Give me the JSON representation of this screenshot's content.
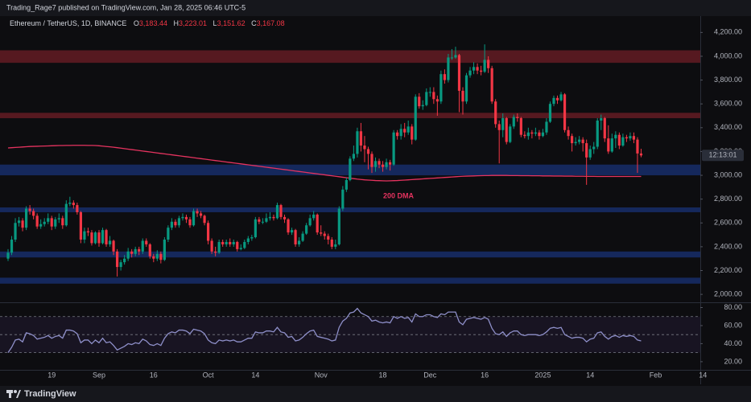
{
  "chart_data": {
    "type": "candlestick",
    "publisher": "Trading_Rage7 published on TradingView.com, Jan 28, 2025 06:46 UTC-5",
    "symbol": "Ethereum / TetherUS, 1D, BINANCE",
    "ohlc_header": {
      "labels": [
        "O",
        "H",
        "L",
        "C"
      ],
      "values": [
        3183.44,
        3223.01,
        3151.62,
        3167.08
      ],
      "value_labels": [
        "3,183.44",
        "3,223.01",
        "3,151.62",
        "3,167.08"
      ]
    },
    "countdown": "12:13:01",
    "brand": "TradingView",
    "up_color": "#089981",
    "down_color": "#f23645",
    "categories": [
      null,
      null,
      null,
      null,
      null,
      null,
      null,
      null,
      null,
      null,
      null,
      null,
      "19",
      null,
      null,
      null,
      null,
      null,
      null,
      null,
      null,
      null,
      null,
      null,
      null,
      "Sep",
      null,
      null,
      null,
      null,
      null,
      null,
      null,
      null,
      null,
      null,
      null,
      null,
      null,
      null,
      "16",
      null,
      null,
      null,
      null,
      null,
      null,
      null,
      null,
      null,
      null,
      null,
      null,
      null,
      null,
      "Oct",
      null,
      null,
      null,
      null,
      null,
      null,
      null,
      null,
      null,
      null,
      null,
      null,
      "14",
      null,
      null,
      null,
      null,
      null,
      null,
      null,
      null,
      null,
      null,
      null,
      null,
      null,
      null,
      null,
      null,
      null,
      "Nov",
      null,
      null,
      null,
      null,
      null,
      null,
      null,
      null,
      null,
      null,
      null,
      null,
      null,
      null,
      null,
      null,
      "18",
      null,
      null,
      null,
      null,
      null,
      null,
      null,
      null,
      null,
      null,
      null,
      null,
      "Dec",
      null,
      null,
      null,
      null,
      null,
      null,
      null,
      null,
      null,
      null,
      null,
      null,
      null,
      null,
      "16",
      null,
      null,
      null,
      null,
      null,
      null,
      null,
      null,
      null,
      null,
      null,
      null,
      null,
      null,
      null,
      "2025",
      null,
      null,
      null,
      null,
      null,
      null,
      null,
      null,
      null,
      null,
      null,
      null,
      "14",
      null,
      null,
      null,
      null,
      null,
      null,
      null,
      null,
      null,
      null,
      null,
      null,
      null,
      null,
      null,
      null,
      null,
      "Feb",
      null,
      null,
      null,
      null,
      null,
      null,
      null,
      null,
      null,
      null,
      null,
      null,
      "14",
      null,
      null,
      null
    ],
    "open": [
      2300,
      2350,
      2460,
      2600,
      2620,
      2560,
      2720,
      2700,
      2660,
      2570,
      2590,
      2610,
      2640,
      2570,
      2630,
      2640,
      2580,
      2760,
      2770,
      2750,
      2690,
      2460,
      2530,
      2520,
      2430,
      2520,
      2430,
      2540,
      2420,
      2450,
      2360,
      2230,
      2270,
      2300,
      2360,
      2340,
      2380,
      2360,
      2450,
      2420,
      2320,
      2300,
      2340,
      2290,
      2460,
      2560,
      2610,
      2580,
      2640,
      2650,
      2630,
      2580,
      2700,
      2680,
      2660,
      2600,
      2450,
      2360,
      2350,
      2440,
      2420,
      2440,
      2420,
      2440,
      2380,
      2390,
      2440,
      2470,
      2480,
      2630,
      2610,
      2610,
      2640,
      2650,
      2640,
      2750,
      2650,
      2630,
      2520,
      2540,
      2420,
      2450,
      2510,
      2580,
      2640,
      2670,
      2520,
      2510,
      2490,
      2460,
      2400,
      2420,
      2720,
      2880,
      2960,
      3140,
      3180,
      3370,
      3250,
      3220,
      3180,
      3070,
      3120,
      3090,
      3070,
      3110,
      3090,
      3360,
      3330,
      3390,
      3360,
      3410,
      3300,
      3660,
      3580,
      3590,
      3700,
      3700,
      3640,
      3620,
      3850,
      3800,
      3990,
      3990,
      4010,
      3710,
      3620,
      3840,
      3880,
      3910,
      3880,
      3870,
      3970,
      3900,
      3620,
      3430,
      3380,
      3480,
      3280,
      3410,
      3490,
      3480,
      3340,
      3330,
      3360,
      3350,
      3360,
      3330,
      3360,
      3450,
      3600,
      3650,
      3630,
      3680,
      3380,
      3330,
      3270,
      3280,
      3300,
      3270,
      3150,
      3220,
      3240,
      3460,
      3480,
      3310,
      3200,
      3310,
      3340,
      3250,
      3320,
      3310,
      3330,
      3300,
      3183.44,
      null,
      null,
      null,
      null,
      null,
      null,
      null,
      null,
      null,
      null,
      null,
      null,
      null,
      null,
      null,
      null,
      null,
      null,
      null,
      null
    ],
    "high": [
      2380,
      2490,
      2640,
      2650,
      2640,
      2740,
      2750,
      2720,
      2680,
      2630,
      2640,
      2680,
      2660,
      2650,
      2680,
      2660,
      2790,
      2820,
      2790,
      2770,
      2700,
      2560,
      2560,
      2540,
      2530,
      2540,
      2560,
      2550,
      2490,
      2460,
      2380,
      2290,
      2330,
      2390,
      2380,
      2400,
      2400,
      2470,
      2470,
      2430,
      2340,
      2370,
      2360,
      2480,
      2580,
      2640,
      2630,
      2660,
      2680,
      2670,
      2650,
      2720,
      2720,
      2700,
      2670,
      2620,
      2470,
      2400,
      2460,
      2460,
      2460,
      2470,
      2460,
      2450,
      2420,
      2460,
      2490,
      2500,
      2650,
      2650,
      2640,
      2680,
      2690,
      2670,
      2770,
      2760,
      2670,
      2640,
      2560,
      2550,
      2480,
      2530,
      2600,
      2670,
      2700,
      2680,
      2580,
      2530,
      2510,
      2480,
      2460,
      2740,
      2910,
      2980,
      3160,
      3250,
      3400,
      3440,
      3330,
      3240,
      3200,
      3150,
      3140,
      3120,
      3140,
      3130,
      3380,
      3380,
      3430,
      3440,
      3460,
      3430,
      3680,
      3690,
      3630,
      3730,
      3740,
      3740,
      3670,
      3880,
      3890,
      4020,
      4060,
      4080,
      4020,
      3740,
      3860,
      3910,
      3950,
      3940,
      3920,
      4100,
      4000,
      3920,
      3640,
      3460,
      3520,
      3490,
      3430,
      3510,
      3520,
      3490,
      3370,
      3400,
      3380,
      3400,
      3380,
      3390,
      3480,
      3620,
      3670,
      3670,
      3700,
      3690,
      3410,
      3350,
      3320,
      3330,
      3320,
      3300,
      3250,
      3280,
      3480,
      3510,
      3490,
      3420,
      3350,
      3370,
      3360,
      3350,
      3340,
      3360,
      3360,
      3320,
      3223.01,
      null,
      null,
      null,
      null,
      null,
      null,
      null,
      null,
      null,
      null,
      null,
      null,
      null,
      null,
      null,
      null,
      null,
      null,
      null,
      null
    ],
    "low": [
      2280,
      2330,
      2440,
      2570,
      2530,
      2540,
      2670,
      2630,
      2550,
      2550,
      2570,
      2590,
      2540,
      2550,
      2600,
      2550,
      2570,
      2740,
      2720,
      2670,
      2430,
      2430,
      2490,
      2410,
      2420,
      2400,
      2420,
      2400,
      2400,
      2330,
      2150,
      2200,
      2250,
      2280,
      2310,
      2320,
      2330,
      2340,
      2400,
      2300,
      2270,
      2280,
      2260,
      2280,
      2440,
      2540,
      2560,
      2560,
      2620,
      2600,
      2560,
      2570,
      2650,
      2640,
      2580,
      2420,
      2340,
      2320,
      2340,
      2400,
      2400,
      2400,
      2400,
      2360,
      2370,
      2380,
      2420,
      2450,
      2470,
      2590,
      2590,
      2600,
      2620,
      2620,
      2630,
      2630,
      2600,
      2500,
      2500,
      2400,
      2400,
      2440,
      2500,
      2570,
      2620,
      2500,
      2490,
      2460,
      2420,
      2380,
      2380,
      2410,
      2700,
      2860,
      2950,
      3120,
      3150,
      3200,
      3110,
      3050,
      3020,
      3030,
      3060,
      3030,
      3050,
      3040,
      3080,
      3300,
      3300,
      3320,
      3340,
      3260,
      3290,
      3560,
      3550,
      3580,
      3660,
      3600,
      3500,
      3600,
      3770,
      3780,
      3970,
      3980,
      3530,
      3510,
      3600,
      3820,
      3850,
      3850,
      3840,
      3860,
      3860,
      3600,
      3400,
      3100,
      3320,
      3260,
      3270,
      3390,
      3450,
      3320,
      3310,
      3300,
      3310,
      3330,
      3300,
      3320,
      3340,
      3440,
      3580,
      3600,
      3620,
      3360,
      3300,
      3200,
      3250,
      3260,
      3200,
      2920,
      3130,
      3180,
      3220,
      3380,
      3280,
      3180,
      3190,
      3230,
      3220,
      3240,
      3280,
      3290,
      3270,
      3020,
      3151.62,
      null,
      null,
      null,
      null,
      null,
      null,
      null,
      null,
      null,
      null,
      null,
      null,
      null,
      null,
      null,
      null,
      null,
      null,
      null,
      null
    ],
    "close": [
      2350,
      2460,
      2600,
      2620,
      2560,
      2720,
      2700,
      2660,
      2570,
      2590,
      2610,
      2640,
      2570,
      2630,
      2640,
      2580,
      2760,
      2770,
      2750,
      2690,
      2460,
      2530,
      2520,
      2430,
      2520,
      2430,
      2540,
      2420,
      2450,
      2360,
      2230,
      2270,
      2300,
      2360,
      2340,
      2380,
      2360,
      2450,
      2420,
      2320,
      2300,
      2340,
      2290,
      2460,
      2560,
      2610,
      2580,
      2640,
      2650,
      2630,
      2580,
      2700,
      2680,
      2660,
      2600,
      2450,
      2360,
      2350,
      2440,
      2420,
      2440,
      2420,
      2440,
      2380,
      2390,
      2440,
      2470,
      2480,
      2630,
      2610,
      2610,
      2640,
      2650,
      2640,
      2750,
      2650,
      2630,
      2520,
      2540,
      2420,
      2450,
      2510,
      2580,
      2640,
      2670,
      2520,
      2510,
      2490,
      2460,
      2400,
      2420,
      2720,
      2880,
      2960,
      3140,
      3180,
      3370,
      3250,
      3220,
      3180,
      3070,
      3120,
      3090,
      3070,
      3110,
      3090,
      3360,
      3330,
      3390,
      3360,
      3410,
      3300,
      3660,
      3580,
      3590,
      3700,
      3700,
      3640,
      3620,
      3850,
      3800,
      3990,
      3990,
      4010,
      3710,
      3620,
      3840,
      3880,
      3910,
      3880,
      3870,
      3970,
      3900,
      3620,
      3430,
      3380,
      3480,
      3280,
      3410,
      3490,
      3480,
      3340,
      3330,
      3360,
      3350,
      3360,
      3330,
      3360,
      3450,
      3600,
      3650,
      3630,
      3680,
      3380,
      3330,
      3270,
      3280,
      3300,
      3270,
      3150,
      3220,
      3240,
      3460,
      3480,
      3310,
      3200,
      3310,
      3340,
      3250,
      3320,
      3310,
      3330,
      3300,
      3183.44,
      3167.08,
      null,
      null,
      null,
      null,
      null,
      null,
      null,
      null,
      null,
      null,
      null,
      null,
      null,
      null,
      null,
      null,
      null,
      null,
      null,
      null
    ],
    "dma": {
      "label": "200 DMA",
      "color": "#e5335f",
      "values": [
        3230,
        3232,
        3234,
        3236,
        3238,
        3240,
        3242,
        3243,
        3244,
        3245,
        3246,
        3247,
        3248,
        3249,
        3250,
        3250,
        3251,
        3251,
        3252,
        3252,
        3252,
        3252,
        3251,
        3251,
        3250,
        3248,
        3245,
        3242,
        3239,
        3236,
        3232,
        3228,
        3224,
        3220,
        3216,
        3212,
        3208,
        3204,
        3200,
        3196,
        3192,
        3188,
        3184,
        3180,
        3176,
        3172,
        3168,
        3164,
        3160,
        3156,
        3152,
        3148,
        3144,
        3140,
        3136,
        3132,
        3128,
        3124,
        3120,
        3116,
        3112,
        3108,
        3104,
        3100,
        3096,
        3092,
        3088,
        3084,
        3080,
        3076,
        3072,
        3068,
        3064,
        3060,
        3056,
        3052,
        3048,
        3044,
        3040,
        3036,
        3032,
        3028,
        3024,
        3020,
        3016,
        3012,
        3008,
        3004,
        3000,
        2996,
        2992,
        2988,
        2984,
        2980,
        2976,
        2972,
        2968,
        2965,
        2962,
        2960,
        2958,
        2956,
        2955,
        2954,
        2953,
        2954,
        2955,
        2956,
        2958,
        2960,
        2962,
        2964,
        2966,
        2968,
        2970,
        2972,
        2974,
        2976,
        2978,
        2980,
        2982,
        2984,
        2986,
        2988,
        2990,
        2992,
        2993,
        2994,
        2995,
        2996,
        2997,
        2998,
        2998,
        2999,
        2999,
        2999,
        2999,
        2999,
        2998,
        2998,
        2998,
        2997,
        2997,
        2997,
        2996,
        2996,
        2996,
        2995,
        2995,
        2995,
        2994,
        2994,
        2994,
        2993,
        2993,
        2993,
        2992,
        2992,
        2992,
        2991,
        2991,
        2991,
        2990,
        2990,
        2990,
        2990,
        2990,
        2990,
        2990,
        2990,
        2990,
        2990,
        2990,
        2990,
        2990,
        null,
        null,
        null,
        null,
        null,
        null,
        null,
        null,
        null,
        null,
        null,
        null,
        null,
        null,
        null,
        null,
        null,
        null,
        null,
        null
      ]
    },
    "zones": [
      {
        "low": 3945,
        "high": 4050,
        "color": "#f23645"
      },
      {
        "low": 3480,
        "high": 3525,
        "color": "#f23645"
      },
      {
        "low": 3000,
        "high": 3090,
        "color": "#2962ff"
      },
      {
        "low": 2690,
        "high": 2730,
        "color": "#2962ff"
      },
      {
        "low": 2310,
        "high": 2360,
        "color": "#2962ff"
      },
      {
        "low": 2090,
        "high": 2140,
        "color": "#2962ff"
      }
    ],
    "ylim": [
      1940,
      4270
    ],
    "yticks": [
      {
        "value": 2000,
        "label": "2,000.00"
      },
      {
        "value": 2200,
        "label": "2,200.00"
      },
      {
        "value": 2400,
        "label": "2,400.00"
      },
      {
        "value": 2600,
        "label": "2,600.00"
      },
      {
        "value": 2800,
        "label": "2,800.00"
      },
      {
        "value": 3000,
        "label": "3,000.00"
      },
      {
        "value": 3200,
        "label": "3,200.00"
      },
      {
        "value": 3400,
        "label": "3,400.00"
      },
      {
        "value": 3600,
        "label": "3,600.00"
      },
      {
        "value": 3800,
        "label": "3,800.00"
      },
      {
        "value": 4000,
        "label": "4,000.00"
      },
      {
        "value": 4200,
        "label": "4,200.00"
      }
    ],
    "rsi": {
      "color": "#8e8fc9",
      "values": [
        30,
        36,
        44,
        45,
        42,
        52,
        51,
        49,
        45,
        46,
        47,
        49,
        46,
        48,
        49,
        46,
        55,
        55,
        54,
        51,
        41,
        44,
        44,
        40,
        44,
        41,
        46,
        41,
        42,
        38,
        33,
        35,
        37,
        40,
        39,
        41,
        40,
        45,
        43,
        39,
        38,
        40,
        38,
        46,
        51,
        53,
        52,
        55,
        55,
        54,
        51,
        56,
        55,
        54,
        51,
        44,
        41,
        40,
        44,
        43,
        44,
        43,
        44,
        42,
        42,
        44,
        46,
        46,
        53,
        52,
        52,
        54,
        54,
        53,
        58,
        53,
        52,
        47,
        48,
        43,
        44,
        47,
        51,
        54,
        55,
        48,
        47,
        46,
        45,
        43,
        44,
        58,
        65,
        68,
        74,
        75,
        79,
        74,
        72,
        70,
        65,
        66,
        64,
        63,
        64,
        63,
        70,
        68,
        70,
        68,
        69,
        64,
        73,
        70,
        70,
        72,
        72,
        70,
        69,
        73,
        72,
        75,
        75,
        75,
        64,
        61,
        67,
        68,
        69,
        68,
        67,
        69,
        67,
        57,
        51,
        50,
        53,
        48,
        52,
        54,
        54,
        50,
        49,
        50,
        50,
        50,
        49,
        50,
        53,
        57,
        58,
        57,
        58,
        50,
        48,
        46,
        47,
        47,
        46,
        42,
        45,
        46,
        52,
        53,
        48,
        45,
        48,
        49,
        47,
        49,
        48,
        49,
        48,
        44,
        43,
        null,
        null,
        null,
        null,
        null,
        null,
        null,
        null,
        null,
        null,
        null,
        null,
        null,
        null,
        null,
        null,
        null,
        null,
        null,
        null
      ],
      "levels": [
        70,
        50,
        30
      ],
      "ylim": [
        11,
        84
      ],
      "yticks": [
        {
          "value": 20,
          "label": "20.00"
        },
        {
          "value": 40,
          "label": "40.00"
        },
        {
          "value": 60,
          "label": "60.00"
        },
        {
          "value": 80,
          "label": "80.00"
        }
      ]
    }
  }
}
